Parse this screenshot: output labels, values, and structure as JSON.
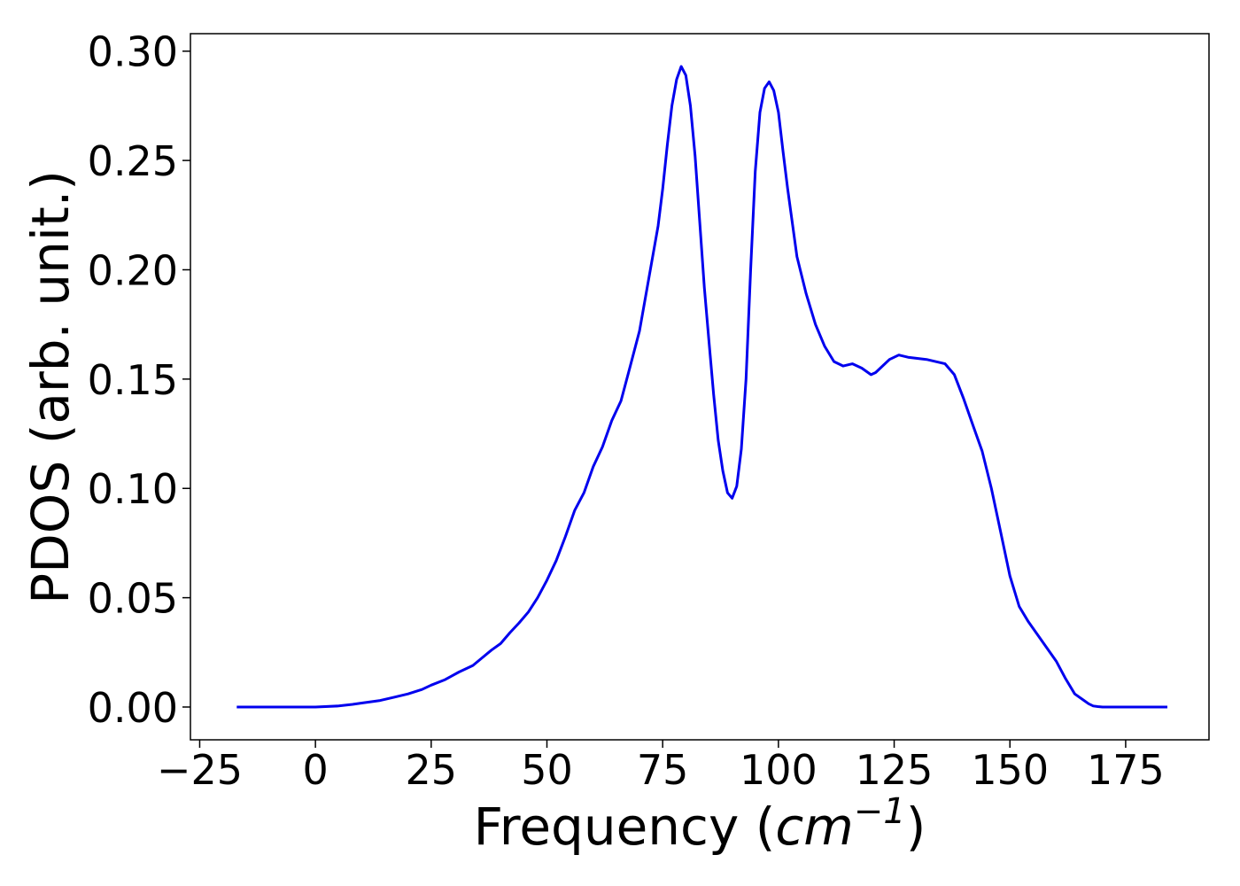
{
  "chart_data": {
    "type": "line",
    "title": "",
    "xlabel": "Frequency",
    "xlabel_unit_base": "cm",
    "xlabel_unit_exp": "−1",
    "ylabel": "PDOS (arb. unit.)",
    "xlim": [
      -27,
      193
    ],
    "ylim": [
      -0.015,
      0.308
    ],
    "xticks": [
      -25,
      0,
      25,
      50,
      75,
      100,
      125,
      150,
      175
    ],
    "xtick_labels": [
      "−25",
      "0",
      "25",
      "50",
      "75",
      "100",
      "125",
      "150",
      "175"
    ],
    "yticks": [
      0.0,
      0.05,
      0.1,
      0.15,
      0.2,
      0.25,
      0.3
    ],
    "ytick_labels": [
      "0.00",
      "0.05",
      "0.10",
      "0.15",
      "0.20",
      "0.25",
      "0.30"
    ],
    "grid": false,
    "legend": "none",
    "series": [
      {
        "color": "#0000ee",
        "x": [
          -17,
          0,
          5,
          8,
          10,
          14,
          17,
          20,
          23,
          25,
          28,
          31,
          34,
          36,
          38,
          40,
          42,
          44,
          46,
          48,
          50,
          52,
          54,
          56,
          58,
          60,
          62,
          64,
          66,
          68,
          70,
          72,
          74,
          75,
          76,
          77,
          78,
          79,
          80,
          81,
          82,
          83,
          84,
          85,
          86,
          87,
          88,
          89,
          90,
          91,
          92,
          93,
          94,
          95,
          96,
          97,
          98,
          99,
          100,
          101,
          102,
          104,
          106,
          108,
          110,
          112,
          114,
          116,
          118,
          120,
          121,
          122,
          124,
          126,
          128,
          132,
          136,
          138,
          140,
          142,
          144,
          146,
          148,
          150,
          152,
          154,
          156,
          158,
          160,
          162,
          164,
          166,
          167,
          168,
          169,
          170,
          172,
          178,
          184
        ],
        "y": [
          0.0,
          0.0,
          0.0005,
          0.0012,
          0.0018,
          0.003,
          0.0045,
          0.006,
          0.008,
          0.01,
          0.0125,
          0.016,
          0.019,
          0.0225,
          0.026,
          0.029,
          0.034,
          0.0385,
          0.0435,
          0.05,
          0.058,
          0.067,
          0.078,
          0.09,
          0.098,
          0.11,
          0.119,
          0.131,
          0.14,
          0.156,
          0.172,
          0.196,
          0.22,
          0.237,
          0.257,
          0.275,
          0.287,
          0.293,
          0.289,
          0.275,
          0.252,
          0.222,
          0.192,
          0.167,
          0.143,
          0.122,
          0.108,
          0.098,
          0.0955,
          0.101,
          0.118,
          0.15,
          0.2,
          0.245,
          0.272,
          0.283,
          0.286,
          0.282,
          0.272,
          0.254,
          0.237,
          0.206,
          0.189,
          0.175,
          0.165,
          0.158,
          0.156,
          0.157,
          0.155,
          0.152,
          0.153,
          0.155,
          0.159,
          0.161,
          0.16,
          0.159,
          0.157,
          0.152,
          0.141,
          0.129,
          0.117,
          0.1,
          0.08,
          0.06,
          0.046,
          0.039,
          0.033,
          0.027,
          0.021,
          0.013,
          0.006,
          0.003,
          0.0015,
          0.0005,
          0.0002,
          0.0,
          0.0,
          0.0,
          0.0
        ]
      }
    ]
  }
}
